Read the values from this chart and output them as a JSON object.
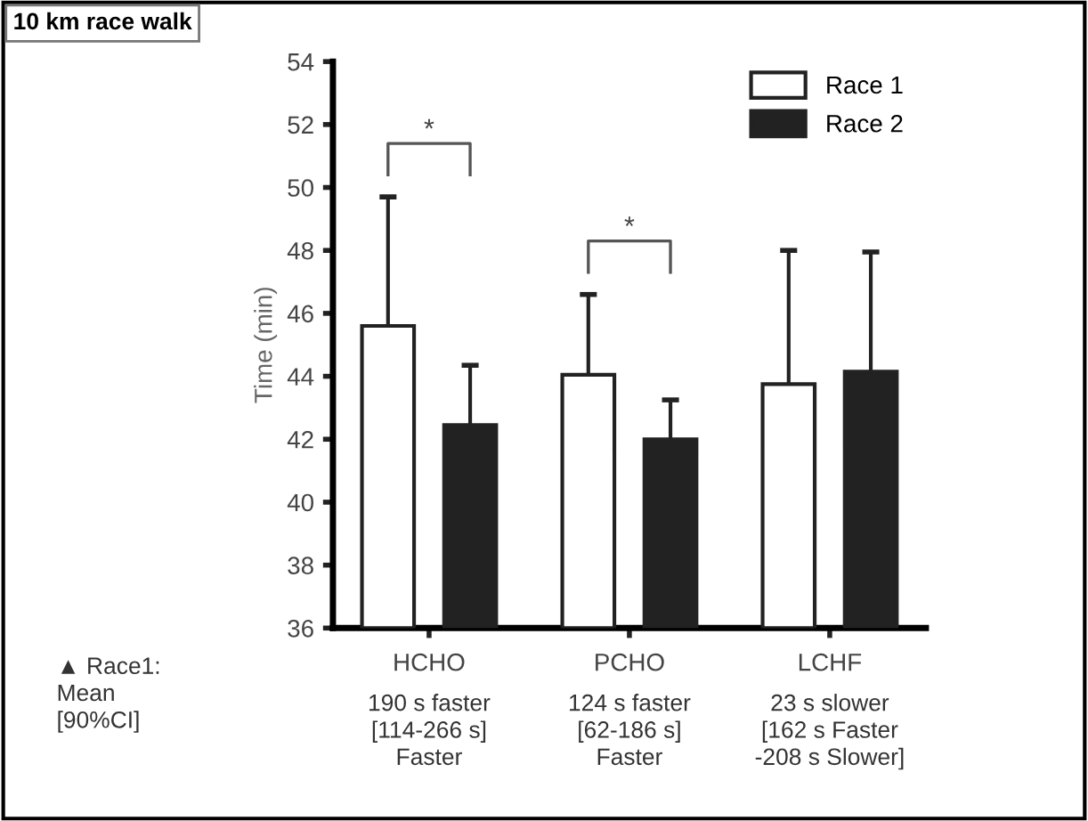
{
  "chart_data": {
    "type": "bar",
    "title": "10 km race walk",
    "ylabel": "Time (min)",
    "categories": [
      "HCHO",
      "PCHO",
      "LCHF"
    ],
    "series": [
      {
        "name": "Race 1",
        "color": "#ffffff",
        "values": [
          45.6,
          44.05,
          43.75
        ],
        "errors": [
          [
            45.6,
            49.7
          ],
          [
            44.05,
            46.6
          ],
          [
            43.75,
            48.0
          ]
        ]
      },
      {
        "name": "Race 2",
        "color": "#222222",
        "values": [
          42.45,
          42.0,
          44.15
        ],
        "errors": [
          [
            42.45,
            44.35
          ],
          [
            42.0,
            43.25
          ],
          [
            44.15,
            47.95
          ]
        ]
      }
    ],
    "ylim": [
      36,
      54
    ],
    "yticks": [
      36,
      38,
      40,
      42,
      44,
      46,
      48,
      50,
      52,
      54
    ],
    "legend": "top right",
    "grid": false,
    "annotations": [
      "*",
      "*",
      "▲ Race1:\nMean\n[90%CI]",
      "190 s faster\n[114-266 s]\nFaster",
      "124 s faster\n[62-186 s]\nFaster",
      "23 s slower\n[162 s Faster\n-208 s Slower]"
    ]
  }
}
